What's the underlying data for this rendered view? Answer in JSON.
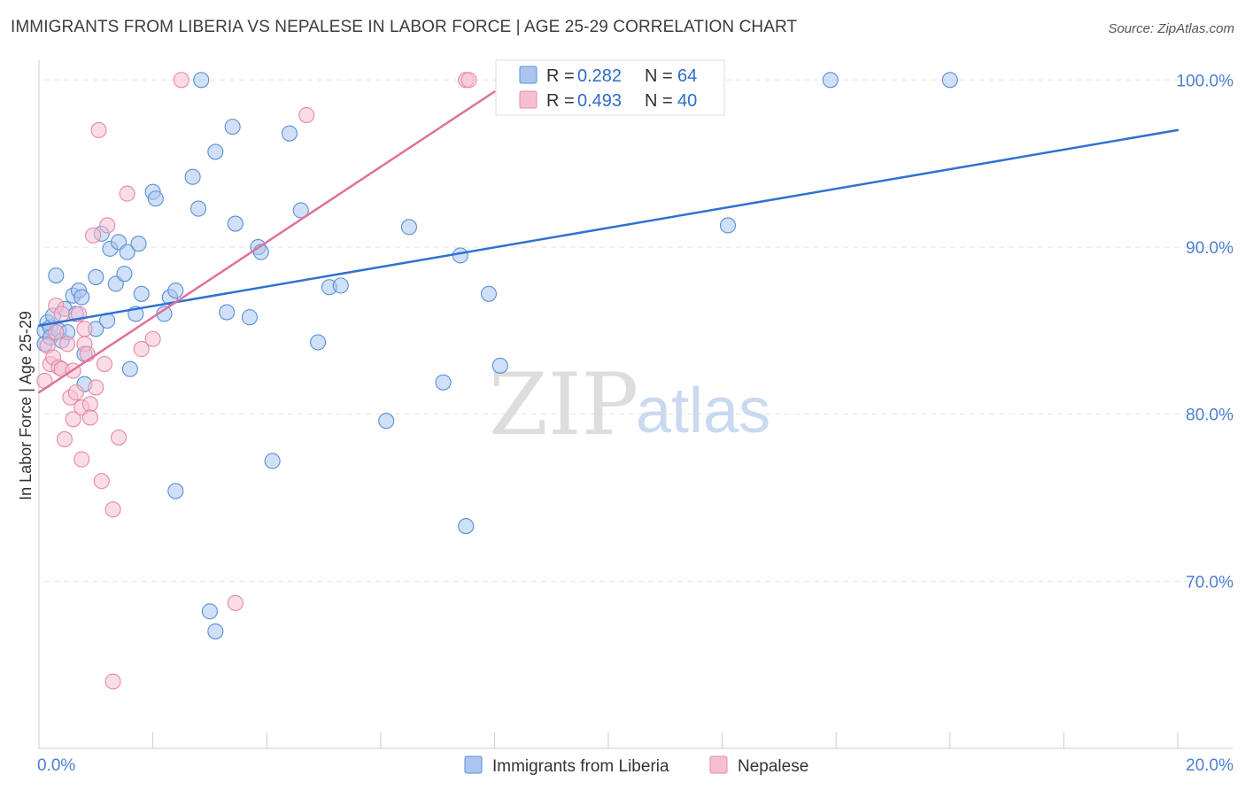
{
  "header": {
    "title": "IMMIGRANTS FROM LIBERIA VS NEPALESE IN LABOR FORCE | AGE 25-29 CORRELATION CHART",
    "source": "Source: ZipAtlas.com"
  },
  "watermark": {
    "zip": "ZIP",
    "atlas": "atlas"
  },
  "colors": {
    "blue_fill": "#aac6f0",
    "blue_stroke": "#5b8fd6",
    "blue_line": "#2f72cf",
    "pink_fill": "#f6bfd1",
    "pink_stroke": "#e689a8",
    "pink_line": "#e0709a",
    "grid": "#e2e2e2",
    "tick_text": "#4a7fd0"
  },
  "legend": {
    "series": [
      {
        "r_label": "R = ",
        "r_value": "0.282",
        "n_label": "N = ",
        "n_value": "64"
      },
      {
        "r_label": "R = ",
        "r_value": "0.493",
        "n_label": "N = ",
        "n_value": "40"
      }
    ]
  },
  "chart_data": {
    "type": "scatter",
    "title": "IMMIGRANTS FROM LIBERIA VS NEPALESE IN LABOR FORCE | AGE 25-29 CORRELATION CHART",
    "xlabel": "",
    "ylabel": "In Labor Force | Age 25-29",
    "xlim": [
      0,
      20
    ],
    "ylim": [
      60,
      101.5
    ],
    "x_tick_labels": [
      {
        "value": 0,
        "label": "0.0%"
      },
      {
        "value": 20,
        "label": "20.0%"
      }
    ],
    "y_tick_labels": [
      {
        "value": 100,
        "label": "100.0%"
      },
      {
        "value": 90,
        "label": "90.0%"
      },
      {
        "value": 80,
        "label": "80.0%"
      },
      {
        "value": 70,
        "label": "70.0%"
      }
    ],
    "y_gridlines": [
      100,
      90,
      80,
      70
    ],
    "series": [
      {
        "name": "Immigrants from Liberia",
        "color": "#aac6f0",
        "trend": {
          "x": [
            0,
            20
          ],
          "y": [
            85.3,
            97.0
          ]
        },
        "points": [
          [
            0.1,
            85.0
          ],
          [
            0.1,
            84.2
          ],
          [
            0.15,
            85.5
          ],
          [
            0.2,
            85.2
          ],
          [
            0.2,
            84.6
          ],
          [
            0.25,
            85.9
          ],
          [
            0.3,
            88.3
          ],
          [
            0.35,
            85.0
          ],
          [
            0.4,
            84.4
          ],
          [
            0.45,
            86.3
          ],
          [
            0.5,
            84.9
          ],
          [
            0.6,
            87.1
          ],
          [
            0.65,
            86.0
          ],
          [
            0.7,
            87.4
          ],
          [
            0.75,
            87.0
          ],
          [
            0.8,
            81.8
          ],
          [
            0.8,
            83.6
          ],
          [
            1.0,
            85.1
          ],
          [
            1.0,
            88.2
          ],
          [
            1.1,
            90.8
          ],
          [
            1.2,
            85.6
          ],
          [
            1.25,
            89.9
          ],
          [
            1.35,
            87.8
          ],
          [
            1.4,
            90.3
          ],
          [
            1.5,
            88.4
          ],
          [
            1.55,
            89.7
          ],
          [
            1.6,
            82.7
          ],
          [
            1.7,
            86.0
          ],
          [
            1.75,
            90.2
          ],
          [
            1.8,
            87.2
          ],
          [
            2.0,
            93.3
          ],
          [
            2.05,
            92.9
          ],
          [
            2.2,
            86.0
          ],
          [
            2.3,
            87.0
          ],
          [
            2.4,
            87.4
          ],
          [
            2.7,
            94.2
          ],
          [
            2.8,
            92.3
          ],
          [
            2.85,
            100.0
          ],
          [
            3.0,
            68.2
          ],
          [
            3.1,
            67.0
          ],
          [
            3.1,
            95.7
          ],
          [
            3.3,
            86.1
          ],
          [
            3.4,
            97.2
          ],
          [
            3.45,
            91.4
          ],
          [
            3.7,
            85.8
          ],
          [
            3.85,
            90.0
          ],
          [
            3.9,
            89.7
          ],
          [
            4.1,
            77.2
          ],
          [
            4.4,
            96.8
          ],
          [
            4.6,
            92.2
          ],
          [
            4.9,
            84.3
          ],
          [
            5.1,
            87.6
          ],
          [
            5.3,
            87.7
          ],
          [
            6.1,
            79.6
          ],
          [
            6.5,
            91.2
          ],
          [
            7.1,
            81.9
          ],
          [
            7.4,
            89.5
          ],
          [
            7.5,
            73.3
          ],
          [
            7.9,
            87.2
          ],
          [
            8.1,
            82.9
          ],
          [
            2.4,
            75.4
          ],
          [
            12.1,
            91.3
          ],
          [
            13.9,
            100.0
          ],
          [
            16.0,
            100.0
          ]
        ]
      },
      {
        "name": "Nepalese",
        "color": "#f6bfd1",
        "trend": {
          "x": [
            0,
            8.0
          ],
          "y": [
            81.3,
            99.3
          ]
        },
        "points": [
          [
            0.1,
            82.0
          ],
          [
            0.15,
            84.1
          ],
          [
            0.2,
            83.0
          ],
          [
            0.25,
            83.4
          ],
          [
            0.3,
            84.9
          ],
          [
            0.3,
            86.5
          ],
          [
            0.35,
            82.8
          ],
          [
            0.4,
            82.7
          ],
          [
            0.4,
            86.0
          ],
          [
            0.45,
            78.5
          ],
          [
            0.5,
            84.2
          ],
          [
            0.55,
            81.0
          ],
          [
            0.6,
            79.7
          ],
          [
            0.6,
            82.6
          ],
          [
            0.65,
            81.3
          ],
          [
            0.7,
            86.0
          ],
          [
            0.75,
            77.3
          ],
          [
            0.75,
            80.4
          ],
          [
            0.8,
            84.2
          ],
          [
            0.8,
            85.1
          ],
          [
            0.85,
            83.6
          ],
          [
            0.9,
            80.6
          ],
          [
            0.9,
            79.8
          ],
          [
            0.95,
            90.7
          ],
          [
            1.0,
            81.6
          ],
          [
            1.05,
            97.0
          ],
          [
            1.1,
            76.0
          ],
          [
            1.15,
            83.0
          ],
          [
            1.2,
            91.3
          ],
          [
            1.3,
            74.3
          ],
          [
            1.3,
            64.0
          ],
          [
            1.4,
            78.6
          ],
          [
            1.55,
            93.2
          ],
          [
            1.8,
            83.9
          ],
          [
            2.0,
            84.5
          ],
          [
            2.5,
            100.0
          ],
          [
            3.45,
            68.7
          ],
          [
            4.7,
            97.9
          ],
          [
            7.5,
            100.0
          ],
          [
            7.55,
            100.0
          ]
        ]
      }
    ],
    "legend_placement": "top-center",
    "bottom_legend": [
      "Immigrants from Liberia",
      "Nepalese"
    ]
  }
}
